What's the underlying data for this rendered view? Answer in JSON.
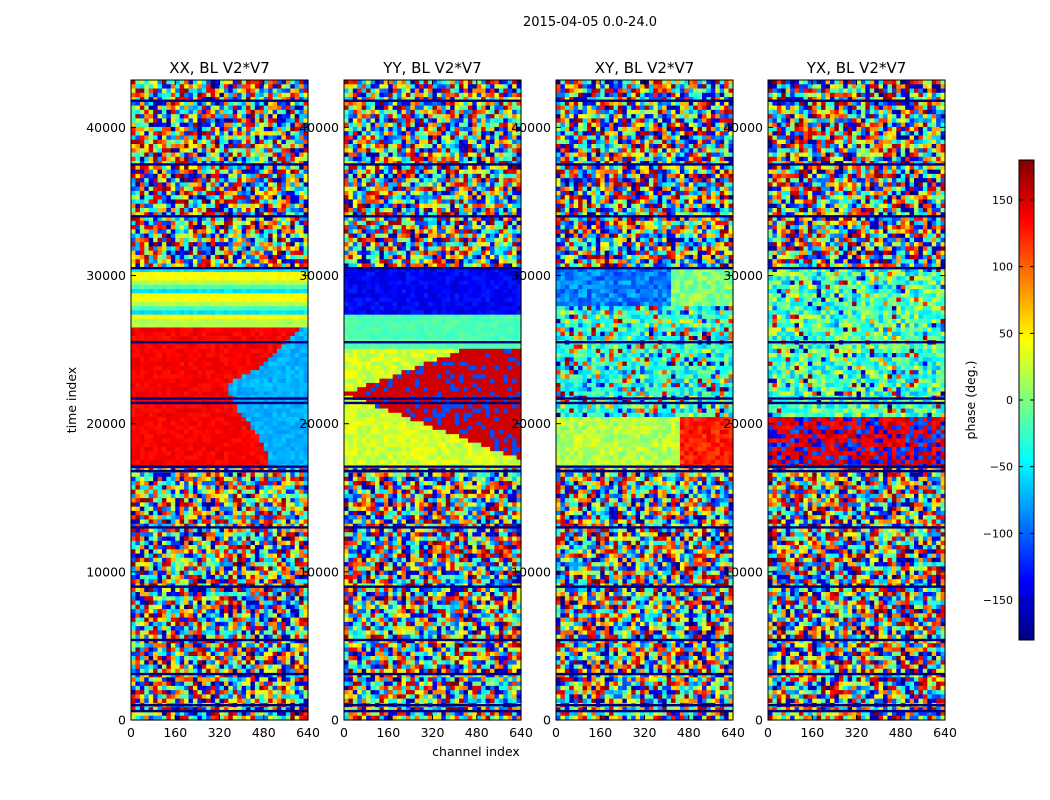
{
  "chart_data": {
    "type": "heatmap",
    "suptitle": "2015-04-05 0.0-24.0",
    "xlabel": "channel index",
    "ylabel": "time index",
    "xlim": [
      0,
      640
    ],
    "ylim": [
      0,
      43200
    ],
    "x_ticks": [
      "0",
      "160",
      "320",
      "480",
      "640"
    ],
    "y_ticks": [
      "0",
      "10000",
      "20000",
      "30000",
      "40000"
    ],
    "panels": [
      {
        "title": "XX, BL V2*V7",
        "pol": "XX"
      },
      {
        "title": "YY, BL V2*V7",
        "pol": "YY"
      },
      {
        "title": "XY, BL V2*V7",
        "pol": "XY"
      },
      {
        "title": "YX, BL V2*V7",
        "pol": "YX"
      }
    ],
    "flagged_rows": [
      600,
      1000,
      3100,
      5400,
      9000,
      13000,
      16800,
      17100,
      21400,
      21700,
      25500,
      30500,
      34000,
      37500,
      41800
    ],
    "colorbar": {
      "label": "phase (deg.)",
      "range": [
        -180,
        180
      ],
      "ticks": [
        "150",
        "100",
        "50",
        "0",
        "−50",
        "−100",
        "−150"
      ],
      "colormap": "jet",
      "colors": [
        "#00007f",
        "#0000ff",
        "#007fff",
        "#00ffff",
        "#7fff7f",
        "#ffff00",
        "#ff7f00",
        "#ff0000",
        "#7f0000"
      ]
    }
  }
}
